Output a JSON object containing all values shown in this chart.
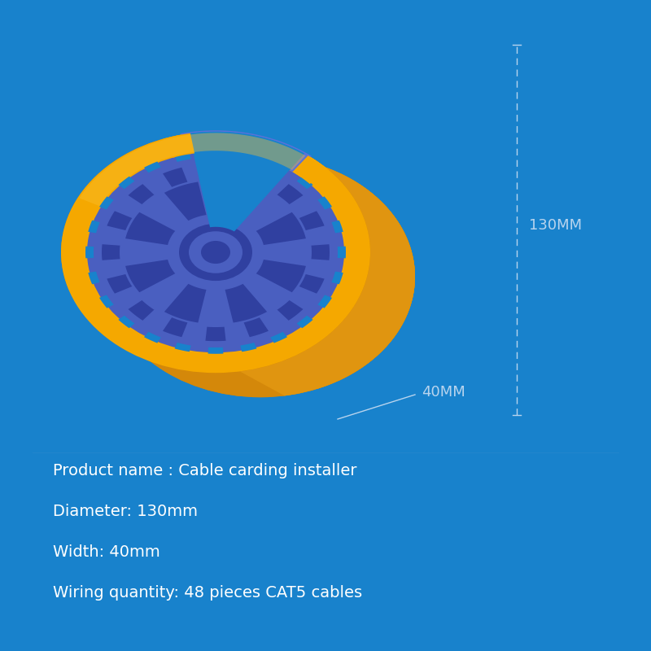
{
  "bg_color": "#1882cc",
  "text_color": "#ffffff",
  "dim_line_color": "#b8d4ee",
  "orange_bright": "#f5a800",
  "orange_dark": "#d4880a",
  "orange_mid": "#e09510",
  "orange_shadow": "#c07800",
  "blue_cable": "#4a5fc0",
  "blue_cable_light": "#5a72d8",
  "blue_cable_dark": "#3040a0",
  "blue_accent": "#3355bb",
  "info_lines": [
    "Product name : Cable carding installer",
    "Diameter: 130mm",
    "Width: 40mm",
    "Wiring quantity: 48 pieces CAT5 cables"
  ],
  "info_fontsize": 14
}
